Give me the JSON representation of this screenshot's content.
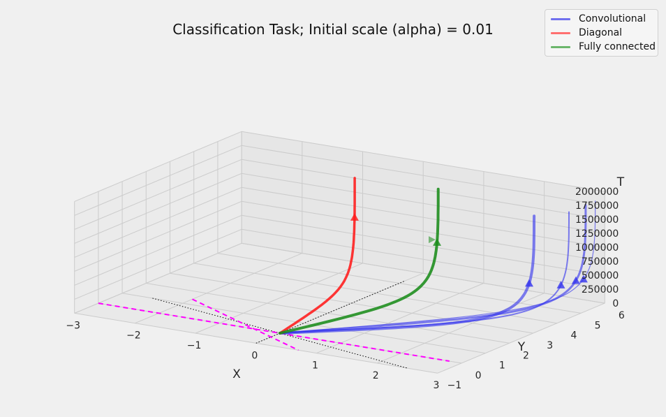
{
  "chart_data": {
    "type": "line",
    "projection": "3d",
    "title": "Classification Task; Initial scale (alpha) = 0.01",
    "xlabel": "X",
    "ylabel": "Y",
    "zlabel": "T",
    "xlim": [
      -3,
      3
    ],
    "ylim": [
      -1,
      6
    ],
    "zlim": [
      0,
      2000000
    ],
    "x_ticks": [
      "−3",
      "−2",
      "−1",
      "0",
      "1",
      "2",
      "3"
    ],
    "y_ticks": [
      "−1",
      "0",
      "1",
      "2",
      "3",
      "4",
      "5",
      "6"
    ],
    "z_ticks": [
      "0",
      "250000",
      "500000",
      "750000",
      "1000000",
      "1250000",
      "1500000",
      "1750000",
      "2000000"
    ],
    "grid": true,
    "legend_position": "top-right",
    "series": [
      {
        "name": "Convolutional",
        "color": "#3333ee",
        "end": [
          2.7,
          3.8
        ],
        "marker_t": 700000,
        "linewidth": 4.0
      },
      {
        "name": "",
        "color": "#3333ee",
        "end": [
          3.0,
          4.5
        ],
        "marker_t": 600000,
        "linewidth": 2.0
      },
      {
        "name": "",
        "color": "#3333ee",
        "end": [
          3.0,
          5.2
        ],
        "marker_t": 560000,
        "linewidth": 3.0
      },
      {
        "name": "",
        "color": "#3333ee",
        "end": [
          3.0,
          5.6
        ],
        "marker_t": 520000,
        "linewidth": 1.2
      },
      {
        "name": "Diagonal",
        "color": "#ff1a1a",
        "end": [
          -0.5,
          4.4
        ],
        "marker_t": 1200000,
        "linewidth": 3.5
      },
      {
        "name": "Fully connected",
        "color": "#1a8c1a",
        "end": [
          0.8,
          4.6
        ],
        "marker_t": 950000,
        "linewidth": 4.0
      }
    ],
    "reference_lines": [
      {
        "style": "dashed",
        "color": "#ff00ff"
      },
      {
        "style": "dotted",
        "color": "#000000"
      }
    ]
  }
}
